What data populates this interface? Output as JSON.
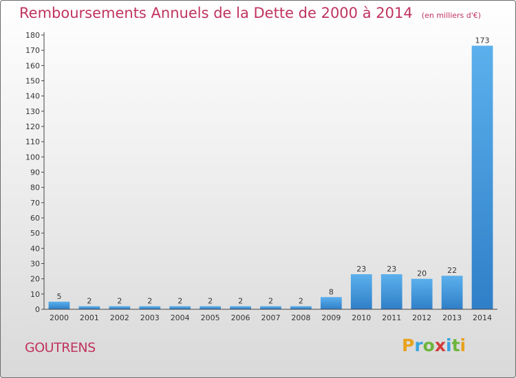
{
  "title": "Remboursements Annuels de la Dette de 2000 à 2014",
  "subtitle": "(en milliers d'€)",
  "commune": "GOUTRENS",
  "logo": {
    "letters": [
      "P",
      "r",
      "o",
      "x",
      "i",
      "t",
      "i"
    ],
    "colors": [
      "#e8a21d",
      "#3aa3e0",
      "#6bb53a",
      "#d23a3a",
      "#3aa3e0",
      "#6bb53a",
      "#e8a21d"
    ]
  },
  "chart_data": {
    "type": "bar",
    "categories": [
      "2000",
      "2001",
      "2002",
      "2003",
      "2004",
      "2005",
      "2006",
      "2007",
      "2008",
      "2009",
      "2010",
      "2011",
      "2012",
      "2013",
      "2014"
    ],
    "values": [
      5,
      2,
      2,
      2,
      2,
      2,
      2,
      2,
      2,
      8,
      23,
      23,
      20,
      22,
      173
    ],
    "ylim": [
      0,
      180
    ],
    "yticks": [
      0,
      10,
      20,
      30,
      40,
      50,
      60,
      70,
      80,
      90,
      100,
      110,
      120,
      130,
      140,
      150,
      160,
      170,
      180
    ],
    "grid": false,
    "bar_color": "#3a8fd8"
  }
}
